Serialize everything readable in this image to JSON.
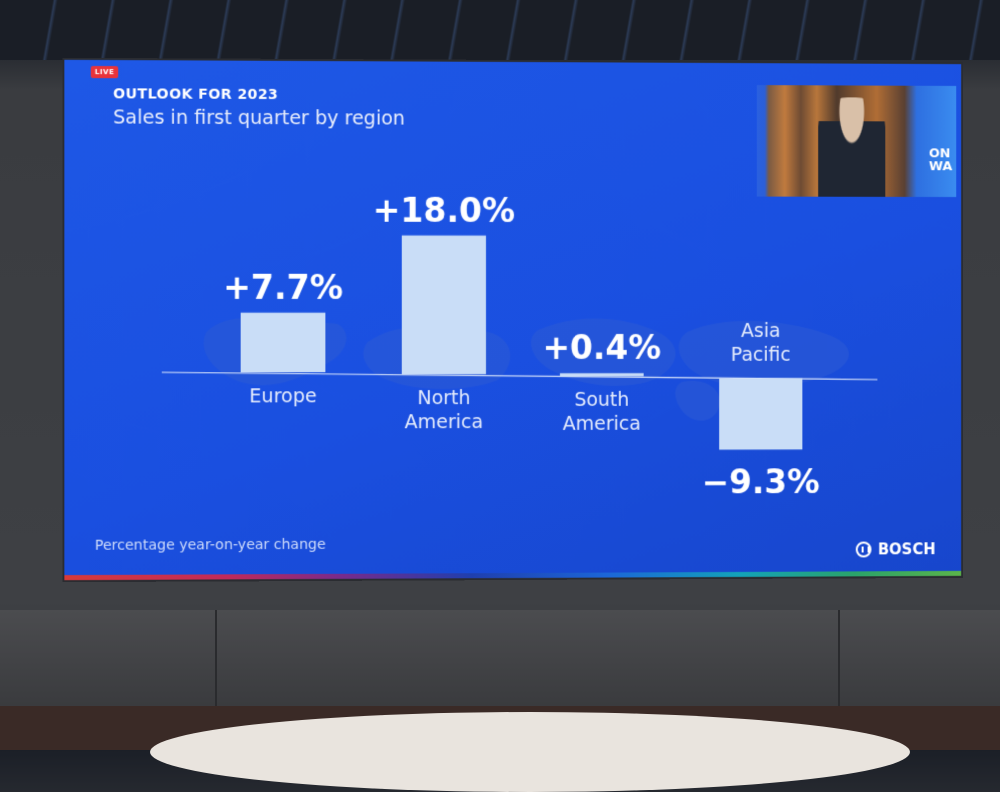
{
  "live_badge": "LIVE",
  "header": {
    "title": "OUTLOOK FOR 2023",
    "subtitle": "Sales in first quarter by region"
  },
  "inset": {
    "tag_line1": "ON",
    "tag_line2": "WA"
  },
  "footnote": "Percentage year-on-year change",
  "brand": "BOSCH",
  "colors": {
    "background": "#1a4fe0",
    "bar": "#c9ddf7",
    "text": "#ffffff"
  },
  "chart_data": {
    "type": "bar",
    "title": "Sales in first quarter by region",
    "categories": [
      "Europe",
      "North America",
      "South America",
      "Asia Pacific"
    ],
    "category_lines": [
      [
        "Europe"
      ],
      [
        "North",
        "America"
      ],
      [
        "South",
        "America"
      ],
      [
        "Asia",
        "Pacific"
      ]
    ],
    "values": [
      7.7,
      18.0,
      0.4,
      -9.3
    ],
    "data_labels": [
      "+7.7%",
      "+18.0%",
      "+0.4%",
      "−9.3%"
    ],
    "unit": "%",
    "ylabel": "",
    "xlabel": "",
    "ylim": [
      -9.3,
      18.0
    ],
    "grid": false,
    "legend": "none"
  }
}
